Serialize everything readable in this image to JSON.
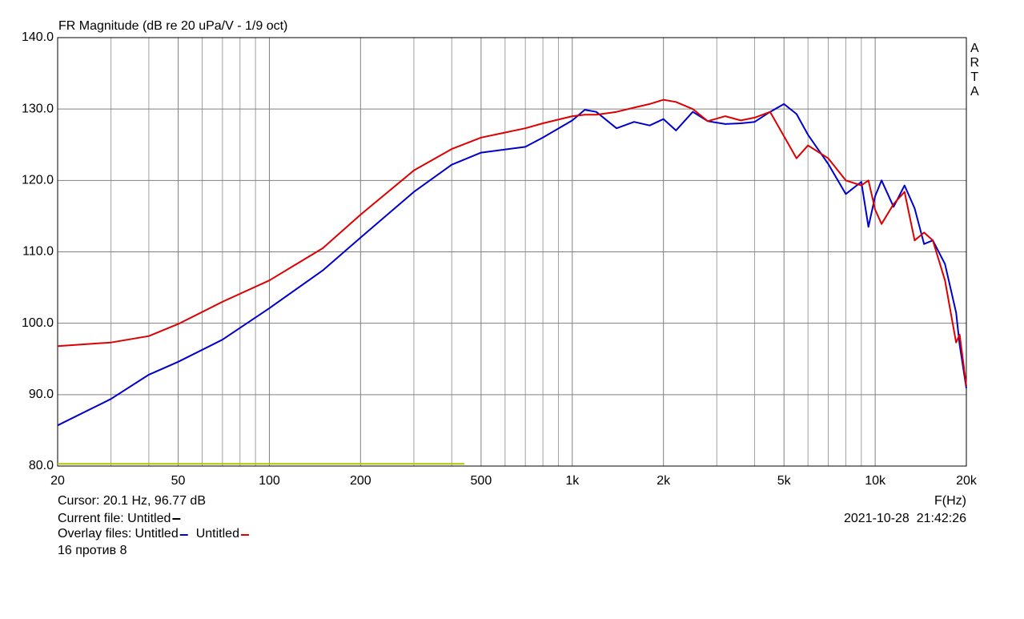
{
  "chart_data": {
    "type": "line",
    "title": "FR Magnitude (dB re 20 uPa/V - 1/9 oct)",
    "watermark": "ARTA",
    "xlabel": "F(Hz)",
    "cursor": "Cursor: 20.1 Hz, 96.77 dB",
    "timestamp": "2021-10-28  21:42:26",
    "current_file": "Current file: Untitled",
    "current_file_color": "#000000",
    "overlay_label": "Overlay files:",
    "note": "16 против 8",
    "xscale": "log",
    "grid": true,
    "xlim": [
      20,
      20000
    ],
    "ylim": [
      80,
      140
    ],
    "xticks": [
      20,
      50,
      100,
      200,
      500,
      {
        "value": 1000,
        "label": "1k"
      },
      {
        "value": 2000,
        "label": "2k"
      },
      {
        "value": 5000,
        "label": "5k"
      },
      {
        "value": 10000,
        "label": "10k"
      },
      {
        "value": 20000,
        "label": "20k"
      }
    ],
    "x_minor_grid": [
      30,
      40,
      60,
      70,
      80,
      90,
      300,
      400,
      600,
      700,
      800,
      900,
      3000,
      4000,
      6000,
      7000,
      8000,
      9000
    ],
    "yticks": [
      {
        "value": 80,
        "label": "80.0"
      },
      {
        "value": 90,
        "label": "90.0"
      },
      {
        "value": 100,
        "label": "100.0"
      },
      {
        "value": 110,
        "label": "110.0"
      },
      {
        "value": 120,
        "label": "120.0"
      },
      {
        "value": 130,
        "label": "130.0"
      },
      {
        "value": 140,
        "label": "140.0"
      }
    ],
    "x": [
      20,
      30,
      40,
      50,
      70,
      100,
      150,
      200,
      300,
      400,
      500,
      700,
      800,
      1000,
      1100,
      1200,
      1400,
      1600,
      1800,
      2000,
      2200,
      2500,
      2800,
      3200,
      3600,
      4000,
      4500,
      5000,
      5500,
      6000,
      7000,
      8000,
      9000,
      9500,
      10000,
      10500,
      11500,
      12500,
      13500,
      14500,
      15500,
      17000,
      18500,
      19000,
      20000
    ],
    "series": [
      {
        "name": "Untitled",
        "color": "#0000cc",
        "legend": true,
        "values": [
          85.7,
          89.4,
          92.8,
          94.6,
          97.7,
          102.1,
          107.4,
          112.0,
          118.4,
          122.2,
          123.9,
          124.7,
          126.0,
          128.4,
          129.9,
          129.6,
          127.3,
          128.2,
          127.7,
          128.6,
          127.0,
          129.6,
          128.3,
          127.9,
          128.0,
          128.2,
          129.6,
          130.7,
          129.3,
          126.4,
          122.3,
          118.1,
          119.8,
          113.5,
          117.8,
          120.0,
          116.3,
          119.3,
          116.1,
          111.1,
          111.6,
          108.3,
          101.5,
          97.0,
          90.9
        ]
      },
      {
        "name": "Untitled",
        "color": "#dd0000",
        "legend": true,
        "values": [
          96.8,
          97.3,
          98.2,
          99.9,
          103.0,
          106.0,
          110.5,
          115.2,
          121.4,
          124.4,
          126.0,
          127.3,
          128.0,
          129.0,
          129.2,
          129.2,
          129.6,
          130.2,
          130.7,
          131.3,
          131.0,
          130.0,
          128.3,
          129.0,
          128.4,
          128.8,
          129.6,
          126.2,
          123.1,
          124.9,
          123.1,
          120.0,
          119.3,
          120.0,
          115.9,
          113.9,
          116.7,
          118.4,
          111.6,
          112.7,
          111.6,
          106.0,
          97.3,
          98.4,
          91.2
        ]
      },
      {
        "color": "#b4c400",
        "x": [
          20,
          440
        ],
        "values": [
          80.3,
          80.3
        ]
      }
    ]
  }
}
